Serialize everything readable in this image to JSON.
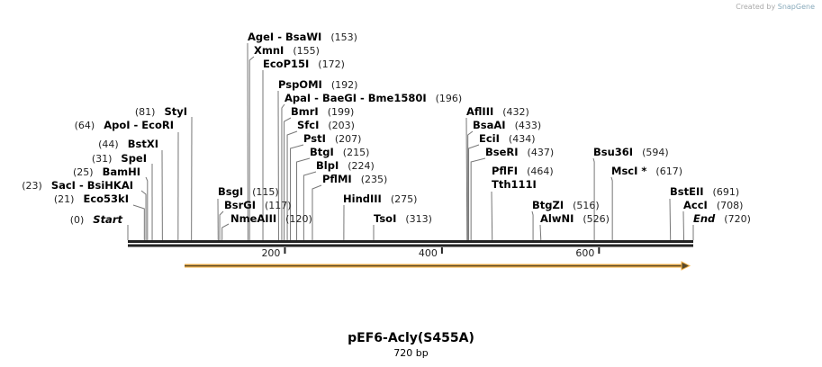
{
  "credit": {
    "prefix": "Created by",
    "brand": "SnapGene"
  },
  "map": {
    "title": "pEF6-Acly(S455A)",
    "length_label": "720 bp",
    "length": 720,
    "ticks": [
      "200",
      "400",
      "600"
    ],
    "colors": {
      "backbone": "#222222",
      "feature_fill": "#f6b347",
      "feature_stroke": "#5a4a2a"
    }
  },
  "enzymes": [
    {
      "name": "Start",
      "pos": "(0)",
      "bp": 0,
      "italic": true
    },
    {
      "name": "Eco53kI",
      "pos": "(21)",
      "bp": 21
    },
    {
      "name": "SacI  - BsiHKAI",
      "pos": "(23)",
      "bp": 23
    },
    {
      "name": "BamHI",
      "pos": "(25)",
      "bp": 25
    },
    {
      "name": "SpeI",
      "pos": "(31)",
      "bp": 31
    },
    {
      "name": "BstXI",
      "pos": "(44)",
      "bp": 44
    },
    {
      "name": "ApoI  - EcoRI",
      "pos": "(64)",
      "bp": 64
    },
    {
      "name": "StyI",
      "pos": "(81)",
      "bp": 81
    },
    {
      "name": "BsgI",
      "pos": "(115)",
      "bp": 115
    },
    {
      "name": "BsrGI",
      "pos": "(117)",
      "bp": 117
    },
    {
      "name": "NmeAIII",
      "pos": "(120)",
      "bp": 120
    },
    {
      "name": "AgeI  - BsaWI",
      "pos": "(153)",
      "bp": 153
    },
    {
      "name": "XmnI",
      "pos": "(155)",
      "bp": 155
    },
    {
      "name": "EcoP15I",
      "pos": "(172)",
      "bp": 172
    },
    {
      "name": "PspOMI",
      "pos": "(192)",
      "bp": 192
    },
    {
      "name": "ApaI  - BaeGI  - Bme1580I",
      "pos": "(196)",
      "bp": 196
    },
    {
      "name": "BmrI",
      "pos": "(199)",
      "bp": 199
    },
    {
      "name": "SfcI",
      "pos": "(203)",
      "bp": 203
    },
    {
      "name": "PstI",
      "pos": "(207)",
      "bp": 207
    },
    {
      "name": "BtgI",
      "pos": "(215)",
      "bp": 215
    },
    {
      "name": "BlpI",
      "pos": "(224)",
      "bp": 224
    },
    {
      "name": "PflMI",
      "pos": "(235)",
      "bp": 235
    },
    {
      "name": "HindIII",
      "pos": "(275)",
      "bp": 275
    },
    {
      "name": "TsoI",
      "pos": "(313)",
      "bp": 313
    },
    {
      "name": "AflIII",
      "pos": "(432)",
      "bp": 432
    },
    {
      "name": "BsaAI",
      "pos": "(433)",
      "bp": 433
    },
    {
      "name": "EciI",
      "pos": "(434)",
      "bp": 434
    },
    {
      "name": "BseRI",
      "pos": "(437)",
      "bp": 437
    },
    {
      "name": "PflFI",
      "pos": "(464)",
      "bp": 464
    },
    {
      "name": "Tth111I",
      "pos": null,
      "bp": 464
    },
    {
      "name": "BtgZI",
      "pos": "(516)",
      "bp": 516
    },
    {
      "name": "AlwNI",
      "pos": "(526)",
      "bp": 526
    },
    {
      "name": "Bsu36I",
      "pos": "(594)",
      "bp": 594
    },
    {
      "name": "MscI *",
      "pos": "(617)",
      "bp": 617
    },
    {
      "name": "BstEII",
      "pos": "(691)",
      "bp": 691
    },
    {
      "name": "AccI",
      "pos": "(708)",
      "bp": 708
    },
    {
      "name": "End",
      "pos": "(720)",
      "bp": 720,
      "italic": true
    }
  ]
}
